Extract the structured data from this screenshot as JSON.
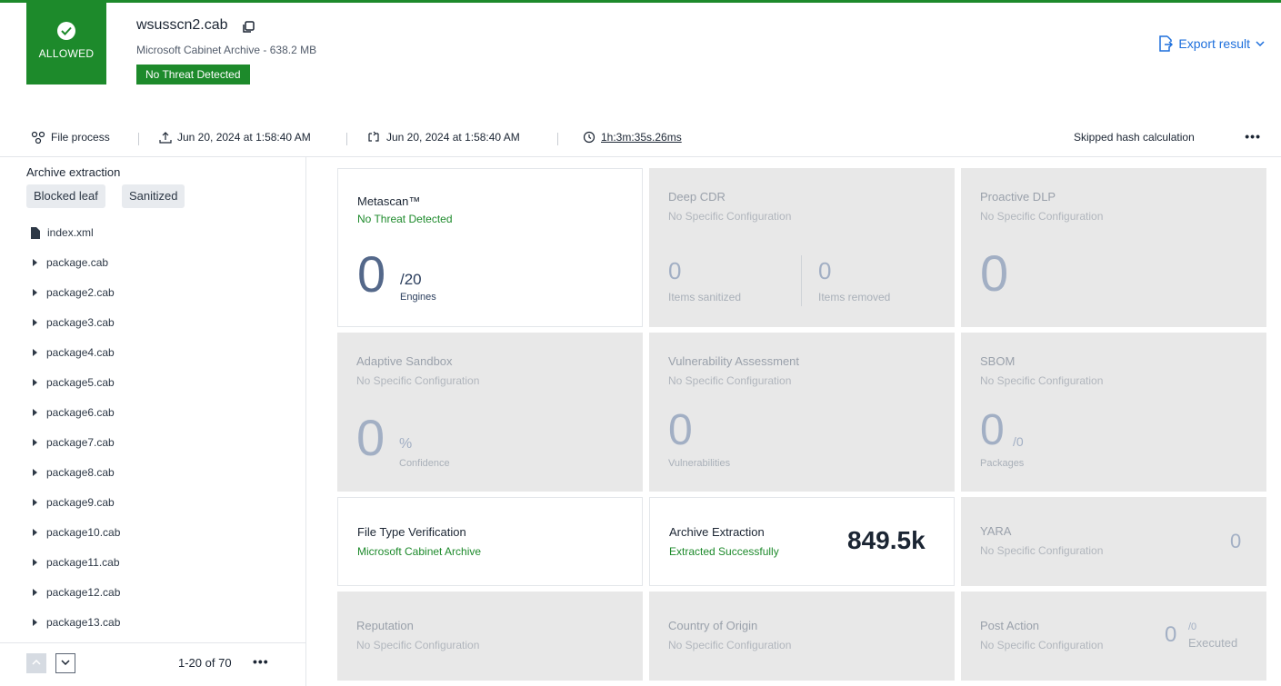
{
  "header": {
    "verdict": "ALLOWED",
    "file_name": "wsusscn2.cab",
    "file_meta": "Microsoft Cabinet Archive - 638.2 MB",
    "threat_badge": "No Threat Detected",
    "export_label": "Export result"
  },
  "infobar": {
    "file_process": "File process",
    "uploaded": "Jun 20, 2024 at 1:58:40 AM",
    "processed": "Jun 20, 2024 at 1:58:40 AM",
    "duration": "1h:3m:35s.26ms",
    "hash_status": "Skipped hash calculation",
    "more": "•••"
  },
  "sidebar": {
    "title": "Archive extraction",
    "tags": [
      "Blocked leaf",
      "Sanitized"
    ],
    "items": [
      "index.xml",
      "package.cab",
      "package2.cab",
      "package3.cab",
      "package4.cab",
      "package5.cab",
      "package6.cab",
      "package7.cab",
      "package8.cab",
      "package9.cab",
      "package10.cab",
      "package11.cab",
      "package12.cab",
      "package13.cab"
    ],
    "pagination": "1-20 of 70",
    "more": "•••"
  },
  "cards": {
    "metascan": {
      "title": "Metascan™",
      "sub": "No Threat Detected",
      "value": "0",
      "unit": "/20",
      "unit_label": "Engines"
    },
    "deepcdr": {
      "title": "Deep CDR",
      "sub": "No Specific Configuration",
      "v1": "0",
      "l1": "Items sanitized",
      "v2": "0",
      "l2": "Items removed"
    },
    "dlp": {
      "title": "Proactive DLP",
      "sub": "No Specific Configuration",
      "value": "0"
    },
    "sandbox": {
      "title": "Adaptive Sandbox",
      "sub": "No Specific Configuration",
      "value": "0",
      "unit": "%",
      "unit_label": "Confidence"
    },
    "vuln": {
      "title": "Vulnerability Assessment",
      "sub": "No Specific Configuration",
      "value": "0",
      "unit_label": "Vulnerabilities"
    },
    "sbom": {
      "title": "SBOM",
      "sub": "No Specific Configuration",
      "value": "0",
      "unit": "/0",
      "unit_label": "Packages"
    },
    "ftv": {
      "title": "File Type Verification",
      "sub": "Microsoft Cabinet Archive"
    },
    "archive": {
      "title": "Archive Extraction",
      "sub": "Extracted Successfully",
      "value": "849.5k"
    },
    "yara": {
      "title": "YARA",
      "sub": "No Specific Configuration",
      "value": "0"
    },
    "reputation": {
      "title": "Reputation",
      "sub": "No Specific Configuration"
    },
    "origin": {
      "title": "Country of Origin",
      "sub": "No Specific Configuration"
    },
    "postaction": {
      "title": "Post Action",
      "sub": "No Specific Configuration",
      "value": "0",
      "unit": "/0",
      "unit_label": "Executed"
    }
  },
  "colors": {
    "allowed": "#1d8a2b",
    "link": "#1d6fdc",
    "card_bg": "#e8e8e8"
  }
}
